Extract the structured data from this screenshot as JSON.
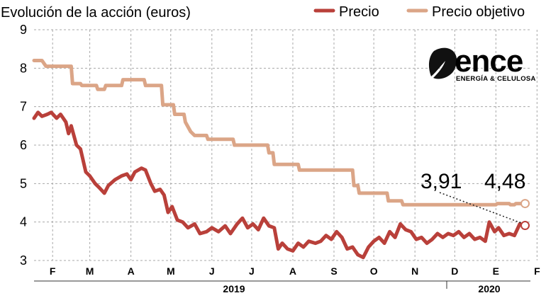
{
  "chart_data": {
    "type": "line",
    "title": "Evolución de la acción (euros)",
    "ylim": [
      3,
      9
    ],
    "yticks": [
      "9",
      "8",
      "7",
      "6",
      "5",
      "4",
      "3"
    ],
    "grid": "dashed",
    "legend_position": "top-right",
    "months": [
      "F",
      "M",
      "A",
      "M",
      "J",
      "J",
      "A",
      "S",
      "O",
      "N",
      "D",
      "E",
      "F"
    ],
    "years": [
      {
        "label": "2019",
        "from_month": 0,
        "to_month": 10
      },
      {
        "label": "2020",
        "from_month": 11,
        "to_month": 12
      }
    ],
    "x_start": "2019-02-01",
    "x_end": "2020-02-10",
    "series": [
      {
        "name": "Precio",
        "color": "#b9403a",
        "points": [
          [
            "2019-02-01",
            6.7
          ],
          [
            "2019-02-04",
            6.85
          ],
          [
            "2019-02-07",
            6.75
          ],
          [
            "2019-02-11",
            6.8
          ],
          [
            "2019-02-14",
            6.85
          ],
          [
            "2019-02-18",
            6.7
          ],
          [
            "2019-02-21",
            6.8
          ],
          [
            "2019-02-25",
            6.6
          ],
          [
            "2019-02-27",
            6.3
          ],
          [
            "2019-03-01",
            6.5
          ],
          [
            "2019-03-05",
            6.0
          ],
          [
            "2019-03-08",
            5.9
          ],
          [
            "2019-03-12",
            5.3
          ],
          [
            "2019-03-15",
            5.2
          ],
          [
            "2019-03-19",
            5.0
          ],
          [
            "2019-03-22",
            4.9
          ],
          [
            "2019-03-26",
            4.75
          ],
          [
            "2019-03-29",
            4.95
          ],
          [
            "2019-04-03",
            5.1
          ],
          [
            "2019-04-08",
            5.2
          ],
          [
            "2019-04-12",
            5.25
          ],
          [
            "2019-04-15",
            5.1
          ],
          [
            "2019-04-18",
            5.3
          ],
          [
            "2019-04-23",
            5.4
          ],
          [
            "2019-04-26",
            5.35
          ],
          [
            "2019-04-30",
            5.0
          ],
          [
            "2019-05-03",
            4.8
          ],
          [
            "2019-05-07",
            4.85
          ],
          [
            "2019-05-10",
            4.7
          ],
          [
            "2019-05-13",
            4.25
          ],
          [
            "2019-05-16",
            4.4
          ],
          [
            "2019-05-20",
            4.05
          ],
          [
            "2019-05-24",
            4.0
          ],
          [
            "2019-05-28",
            3.85
          ],
          [
            "2019-06-02",
            3.95
          ],
          [
            "2019-06-06",
            3.7
          ],
          [
            "2019-06-11",
            3.75
          ],
          [
            "2019-06-15",
            3.85
          ],
          [
            "2019-06-20",
            3.75
          ],
          [
            "2019-06-25",
            3.9
          ],
          [
            "2019-06-29",
            3.7
          ],
          [
            "2019-07-04",
            3.95
          ],
          [
            "2019-07-08",
            4.1
          ],
          [
            "2019-07-12",
            3.85
          ],
          [
            "2019-07-16",
            3.95
          ],
          [
            "2019-07-20",
            3.8
          ],
          [
            "2019-07-24",
            4.1
          ],
          [
            "2019-07-28",
            3.9
          ],
          [
            "2019-08-01",
            3.85
          ],
          [
            "2019-08-04",
            3.3
          ],
          [
            "2019-08-07",
            3.45
          ],
          [
            "2019-08-11",
            3.3
          ],
          [
            "2019-08-15",
            3.25
          ],
          [
            "2019-08-19",
            3.45
          ],
          [
            "2019-08-23",
            3.35
          ],
          [
            "2019-08-27",
            3.5
          ],
          [
            "2019-09-01",
            3.45
          ],
          [
            "2019-09-05",
            3.5
          ],
          [
            "2019-09-09",
            3.65
          ],
          [
            "2019-09-13",
            3.55
          ],
          [
            "2019-09-17",
            3.75
          ],
          [
            "2019-09-21",
            3.6
          ],
          [
            "2019-09-25",
            3.3
          ],
          [
            "2019-09-29",
            3.35
          ],
          [
            "2019-10-03",
            3.15
          ],
          [
            "2019-10-07",
            3.08
          ],
          [
            "2019-10-11",
            3.35
          ],
          [
            "2019-10-15",
            3.5
          ],
          [
            "2019-10-19",
            3.6
          ],
          [
            "2019-10-23",
            3.45
          ],
          [
            "2019-10-27",
            3.75
          ],
          [
            "2019-10-31",
            3.6
          ],
          [
            "2019-11-04",
            3.95
          ],
          [
            "2019-11-08",
            3.8
          ],
          [
            "2019-11-12",
            3.75
          ],
          [
            "2019-11-16",
            3.55
          ],
          [
            "2019-11-20",
            3.6
          ],
          [
            "2019-11-24",
            3.45
          ],
          [
            "2019-11-28",
            3.55
          ],
          [
            "2019-12-02",
            3.7
          ],
          [
            "2019-12-06",
            3.6
          ],
          [
            "2019-12-10",
            3.7
          ],
          [
            "2019-12-14",
            3.65
          ],
          [
            "2019-12-18",
            3.75
          ],
          [
            "2019-12-22",
            3.6
          ],
          [
            "2019-12-26",
            3.7
          ],
          [
            "2019-12-30",
            3.55
          ],
          [
            "2020-01-03",
            3.6
          ],
          [
            "2020-01-07",
            3.5
          ],
          [
            "2020-01-10",
            4.0
          ],
          [
            "2020-01-14",
            3.75
          ],
          [
            "2020-01-17",
            3.85
          ],
          [
            "2020-01-21",
            3.65
          ],
          [
            "2020-01-25",
            3.7
          ],
          [
            "2020-01-29",
            3.65
          ],
          [
            "2020-02-02",
            3.95
          ],
          [
            "2020-02-06",
            3.91
          ]
        ]
      },
      {
        "name": "Precio objetivo",
        "color": "#dba587",
        "points": [
          [
            "2019-02-01",
            8.2
          ],
          [
            "2019-02-07",
            8.2
          ],
          [
            "2019-02-10",
            8.05
          ],
          [
            "2019-02-25",
            8.05
          ],
          [
            "2019-03-01",
            8.05
          ],
          [
            "2019-03-02",
            7.6
          ],
          [
            "2019-03-08",
            7.6
          ],
          [
            "2019-03-09",
            7.55
          ],
          [
            "2019-03-20",
            7.55
          ],
          [
            "2019-03-21",
            7.45
          ],
          [
            "2019-03-26",
            7.45
          ],
          [
            "2019-03-27",
            7.55
          ],
          [
            "2019-04-08",
            7.55
          ],
          [
            "2019-04-09",
            7.7
          ],
          [
            "2019-04-25",
            7.7
          ],
          [
            "2019-04-26",
            7.55
          ],
          [
            "2019-05-08",
            7.55
          ],
          [
            "2019-05-09",
            7.05
          ],
          [
            "2019-05-17",
            7.05
          ],
          [
            "2019-05-18",
            6.8
          ],
          [
            "2019-05-25",
            6.8
          ],
          [
            "2019-05-26",
            6.6
          ],
          [
            "2019-05-30",
            6.35
          ],
          [
            "2019-06-02",
            6.25
          ],
          [
            "2019-06-11",
            6.25
          ],
          [
            "2019-06-12",
            6.15
          ],
          [
            "2019-07-01",
            6.15
          ],
          [
            "2019-07-02",
            6.0
          ],
          [
            "2019-07-27",
            6.0
          ],
          [
            "2019-07-28",
            5.8
          ],
          [
            "2019-07-31",
            5.8
          ],
          [
            "2019-08-01",
            5.5
          ],
          [
            "2019-08-19",
            5.5
          ],
          [
            "2019-08-20",
            5.35
          ],
          [
            "2019-09-29",
            5.35
          ],
          [
            "2019-09-30",
            4.95
          ],
          [
            "2019-10-03",
            4.95
          ],
          [
            "2019-10-04",
            4.75
          ],
          [
            "2019-10-25",
            4.75
          ],
          [
            "2019-10-26",
            4.55
          ],
          [
            "2019-11-05",
            4.55
          ],
          [
            "2019-11-06",
            4.45
          ],
          [
            "2020-01-15",
            4.45
          ],
          [
            "2020-01-16",
            4.48
          ],
          [
            "2020-01-25",
            4.48
          ],
          [
            "2020-01-26",
            4.45
          ],
          [
            "2020-01-29",
            4.45
          ],
          [
            "2020-01-30",
            4.48
          ],
          [
            "2020-02-06",
            4.48
          ]
        ]
      }
    ],
    "annotations": [
      {
        "text": "3,91",
        "series": "Precio",
        "date": "2020-02-06",
        "value": 3.91
      },
      {
        "text": "4,48",
        "series": "Precio objetivo",
        "date": "2020-02-06",
        "value": 4.48
      }
    ]
  },
  "logo": {
    "word": "ence",
    "subtitle": "ENERGÍA & CELULOSA",
    "icon": "leaf-icon"
  },
  "colors": {
    "precio": "#b9403a",
    "objetivo": "#dba587",
    "grid": "#a8a8a8",
    "axis": "#333333"
  }
}
